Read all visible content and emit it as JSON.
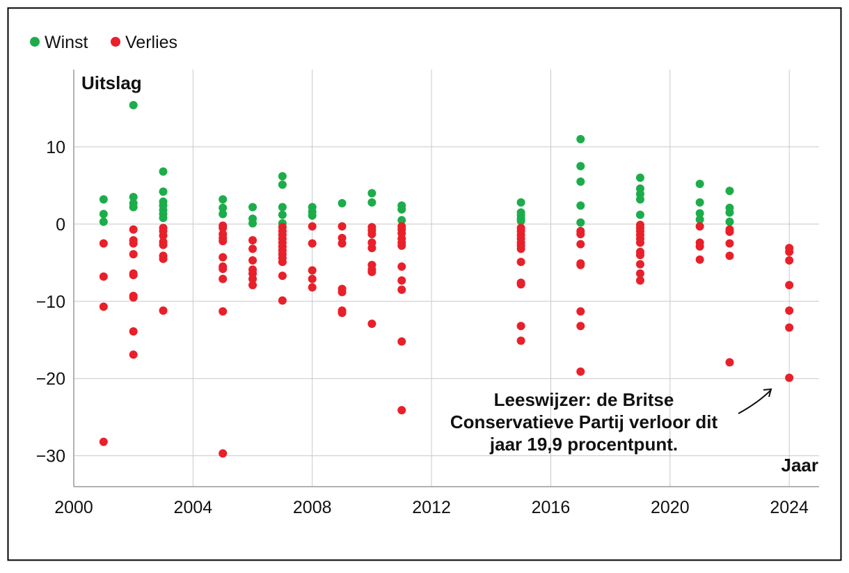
{
  "chart_data": {
    "type": "scatter",
    "title": "",
    "xlabel": "Jaar",
    "ylabel": "Uitslag",
    "xlim": [
      2000,
      2025
    ],
    "ylim": [
      -34,
      20
    ],
    "xticks": [
      2000,
      2004,
      2008,
      2012,
      2016,
      2020,
      2024
    ],
    "yticks": [
      -30,
      -20,
      -10,
      0,
      10
    ],
    "ytick_labels": [
      "−30",
      "−20",
      "−10",
      "0",
      "10"
    ],
    "grid": true,
    "legend": {
      "position": "top-left",
      "entries": [
        {
          "label": "Winst",
          "color": "#1cad4a"
        },
        {
          "label": "Verlies",
          "color": "#e8202a"
        }
      ]
    },
    "annotation": {
      "lines": [
        "Leeswijzer: de Britse",
        "Conservatieve Partij verloor dit",
        "jaar 19,9 procentpunt."
      ],
      "points_to": {
        "x": 2024,
        "y": -19.9
      }
    },
    "series": [
      {
        "name": "Winst",
        "color": "#1cad4a",
        "points": [
          [
            2001,
            3.2
          ],
          [
            2001,
            1.3
          ],
          [
            2001,
            0.3
          ],
          [
            2002,
            15.4
          ],
          [
            2002,
            3.5
          ],
          [
            2002,
            2.7
          ],
          [
            2002,
            2.2
          ],
          [
            2003,
            6.8
          ],
          [
            2003,
            4.2
          ],
          [
            2003,
            2.9
          ],
          [
            2003,
            2.4
          ],
          [
            2003,
            1.8
          ],
          [
            2003,
            1.3
          ],
          [
            2003,
            0.8
          ],
          [
            2005,
            3.2
          ],
          [
            2005,
            2.1
          ],
          [
            2005,
            1.3
          ],
          [
            2006,
            2.2
          ],
          [
            2006,
            0.7
          ],
          [
            2006,
            0.1
          ],
          [
            2007,
            6.2
          ],
          [
            2007,
            5.1
          ],
          [
            2007,
            2.2
          ],
          [
            2007,
            1.2
          ],
          [
            2007,
            0.1
          ],
          [
            2008,
            2.2
          ],
          [
            2008,
            1.6
          ],
          [
            2008,
            1.1
          ],
          [
            2009,
            2.7
          ],
          [
            2010,
            4.0
          ],
          [
            2010,
            2.8
          ],
          [
            2011,
            2.4
          ],
          [
            2011,
            1.9
          ],
          [
            2011,
            0.5
          ],
          [
            2015,
            2.8
          ],
          [
            2015,
            1.5
          ],
          [
            2015,
            1.1
          ],
          [
            2015,
            0.7
          ],
          [
            2015,
            0.4
          ],
          [
            2017,
            11.0
          ],
          [
            2017,
            7.5
          ],
          [
            2017,
            5.5
          ],
          [
            2017,
            2.4
          ],
          [
            2017,
            0.2
          ],
          [
            2019,
            6.0
          ],
          [
            2019,
            4.6
          ],
          [
            2019,
            3.9
          ],
          [
            2019,
            3.2
          ],
          [
            2019,
            1.2
          ],
          [
            2021,
            5.2
          ],
          [
            2021,
            2.8
          ],
          [
            2021,
            1.4
          ],
          [
            2021,
            0.6
          ],
          [
            2022,
            4.3
          ],
          [
            2022,
            2.1
          ],
          [
            2022,
            1.5
          ],
          [
            2022,
            0.3
          ]
        ]
      },
      {
        "name": "Verlies",
        "color": "#e8202a",
        "points": [
          [
            2001,
            -2.5
          ],
          [
            2001,
            -6.8
          ],
          [
            2001,
            -10.7
          ],
          [
            2001,
            -28.2
          ],
          [
            2002,
            -0.7
          ],
          [
            2002,
            -2.1
          ],
          [
            2002,
            -2.5
          ],
          [
            2002,
            -3.9
          ],
          [
            2002,
            -6.4
          ],
          [
            2002,
            -6.6
          ],
          [
            2002,
            -9.3
          ],
          [
            2002,
            -9.5
          ],
          [
            2002,
            -13.9
          ],
          [
            2002,
            -16.9
          ],
          [
            2003,
            -0.5
          ],
          [
            2003,
            -0.9
          ],
          [
            2003,
            -1.5
          ],
          [
            2003,
            -2.3
          ],
          [
            2003,
            -2.7
          ],
          [
            2003,
            -4.1
          ],
          [
            2003,
            -4.5
          ],
          [
            2003,
            -11.2
          ],
          [
            2005,
            -0.2
          ],
          [
            2005,
            -0.5
          ],
          [
            2005,
            -1.3
          ],
          [
            2005,
            -1.8
          ],
          [
            2005,
            -2.2
          ],
          [
            2005,
            -4.3
          ],
          [
            2005,
            -5.5
          ],
          [
            2005,
            -5.8
          ],
          [
            2005,
            -7.1
          ],
          [
            2005,
            -11.3
          ],
          [
            2005,
            -29.7
          ],
          [
            2006,
            -2.1
          ],
          [
            2006,
            -3.2
          ],
          [
            2006,
            -4.7
          ],
          [
            2006,
            -5.9
          ],
          [
            2006,
            -6.4
          ],
          [
            2006,
            -7.1
          ],
          [
            2006,
            -7.9
          ],
          [
            2007,
            -0.4
          ],
          [
            2007,
            -0.9
          ],
          [
            2007,
            -1.4
          ],
          [
            2007,
            -1.9
          ],
          [
            2007,
            -2.4
          ],
          [
            2007,
            -2.9
          ],
          [
            2007,
            -3.4
          ],
          [
            2007,
            -3.9
          ],
          [
            2007,
            -4.4
          ],
          [
            2007,
            -4.9
          ],
          [
            2007,
            -6.7
          ],
          [
            2007,
            -9.9
          ],
          [
            2008,
            -0.3
          ],
          [
            2008,
            -2.5
          ],
          [
            2008,
            -6.0
          ],
          [
            2008,
            -7.1
          ],
          [
            2008,
            -8.2
          ],
          [
            2009,
            -0.3
          ],
          [
            2009,
            -1.8
          ],
          [
            2009,
            -2.5
          ],
          [
            2009,
            -8.4
          ],
          [
            2009,
            -8.8
          ],
          [
            2009,
            -11.2
          ],
          [
            2009,
            -11.5
          ],
          [
            2010,
            -0.4
          ],
          [
            2010,
            -0.8
          ],
          [
            2010,
            -1.3
          ],
          [
            2010,
            -2.4
          ],
          [
            2010,
            -3.1
          ],
          [
            2010,
            -5.3
          ],
          [
            2010,
            -5.9
          ],
          [
            2010,
            -6.2
          ],
          [
            2010,
            -12.9
          ],
          [
            2011,
            -0.3
          ],
          [
            2011,
            -0.7
          ],
          [
            2011,
            -1.2
          ],
          [
            2011,
            -1.9
          ],
          [
            2011,
            -2.4
          ],
          [
            2011,
            -2.8
          ],
          [
            2011,
            -5.5
          ],
          [
            2011,
            -7.3
          ],
          [
            2011,
            -8.5
          ],
          [
            2011,
            -15.2
          ],
          [
            2011,
            -24.1
          ],
          [
            2015,
            -0.5
          ],
          [
            2015,
            -0.9
          ],
          [
            2015,
            -1.4
          ],
          [
            2015,
            -1.9
          ],
          [
            2015,
            -2.4
          ],
          [
            2015,
            -2.8
          ],
          [
            2015,
            -3.2
          ],
          [
            2015,
            -4.9
          ],
          [
            2015,
            -7.6
          ],
          [
            2015,
            -7.8
          ],
          [
            2015,
            -13.2
          ],
          [
            2015,
            -15.1
          ],
          [
            2017,
            -0.9
          ],
          [
            2017,
            -1.3
          ],
          [
            2017,
            -2.6
          ],
          [
            2017,
            -5.1
          ],
          [
            2017,
            -5.3
          ],
          [
            2017,
            -11.3
          ],
          [
            2017,
            -13.2
          ],
          [
            2017,
            -19.1
          ],
          [
            2019,
            -0.1
          ],
          [
            2019,
            -0.5
          ],
          [
            2019,
            -0.9
          ],
          [
            2019,
            -1.4
          ],
          [
            2019,
            -1.9
          ],
          [
            2019,
            -2.4
          ],
          [
            2019,
            -3.6
          ],
          [
            2019,
            -4.0
          ],
          [
            2019,
            -5.2
          ],
          [
            2019,
            -6.4
          ],
          [
            2019,
            -7.3
          ],
          [
            2021,
            -0.3
          ],
          [
            2021,
            -2.4
          ],
          [
            2021,
            -2.9
          ],
          [
            2021,
            -4.6
          ],
          [
            2022,
            -0.7
          ],
          [
            2022,
            -1.0
          ],
          [
            2022,
            -2.5
          ],
          [
            2022,
            -4.1
          ],
          [
            2022,
            -17.9
          ],
          [
            2024,
            -3.1
          ],
          [
            2024,
            -3.6
          ],
          [
            2024,
            -4.7
          ],
          [
            2024,
            -7.9
          ],
          [
            2024,
            -11.2
          ],
          [
            2024,
            -13.4
          ],
          [
            2024,
            -19.9
          ]
        ]
      }
    ]
  }
}
